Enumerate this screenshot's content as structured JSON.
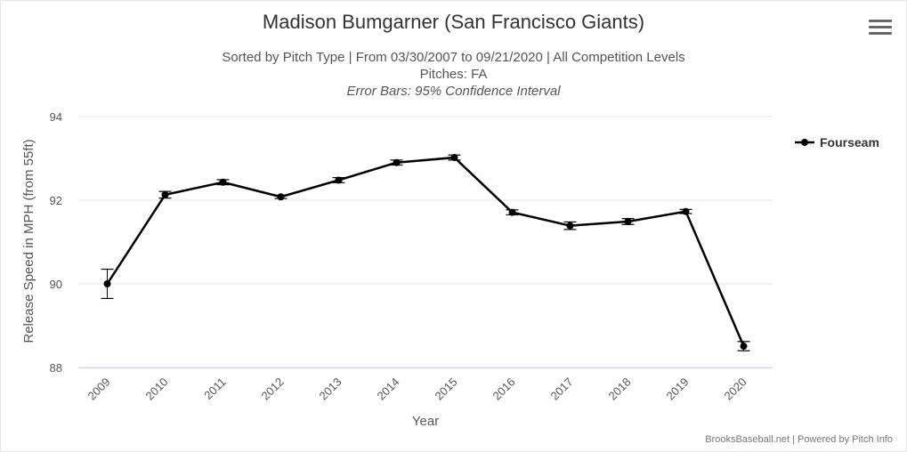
{
  "title": "Madison Bumgarner (San Francisco Giants)",
  "subtitle_line1": "Sorted by Pitch Type | From 03/30/2007 to 09/21/2020 | All Competition Levels",
  "subtitle_line2": "Pitches: FA",
  "subtitle_line3": "Error Bars: 95% Confidence Interval",
  "credits": "BrooksBaseball.net | Powered by Pitch Info",
  "menu_icon": "hamburger-menu-icon",
  "colors": {
    "series": "#000000",
    "grid": "#e6e6e6",
    "axis": "#ccd6eb"
  },
  "chart_data": {
    "type": "line",
    "title": "Madison Bumgarner (San Francisco Giants)",
    "xlabel": "Year",
    "ylabel": "Release Speed in MPH (from 55ft)",
    "categories": [
      "2009",
      "2010",
      "2011",
      "2012",
      "2013",
      "2014",
      "2015",
      "2016",
      "2017",
      "2018",
      "2019",
      "2020"
    ],
    "ylim": [
      88,
      94
    ],
    "yticks": [
      "88",
      "90",
      "92",
      "94"
    ],
    "grid": true,
    "legend_position": "right",
    "series": [
      {
        "name": "Fourseam",
        "values": [
          90.0,
          92.13,
          92.43,
          92.08,
          92.48,
          92.9,
          93.02,
          91.71,
          91.39,
          91.49,
          91.73,
          88.51
        ],
        "error_low": [
          89.65,
          92.05,
          92.37,
          92.04,
          92.42,
          92.84,
          92.96,
          91.65,
          91.3,
          91.42,
          91.68,
          88.4
        ],
        "error_high": [
          90.35,
          92.21,
          92.49,
          92.12,
          92.54,
          92.96,
          93.08,
          91.77,
          91.48,
          91.56,
          91.78,
          88.62
        ]
      }
    ]
  }
}
